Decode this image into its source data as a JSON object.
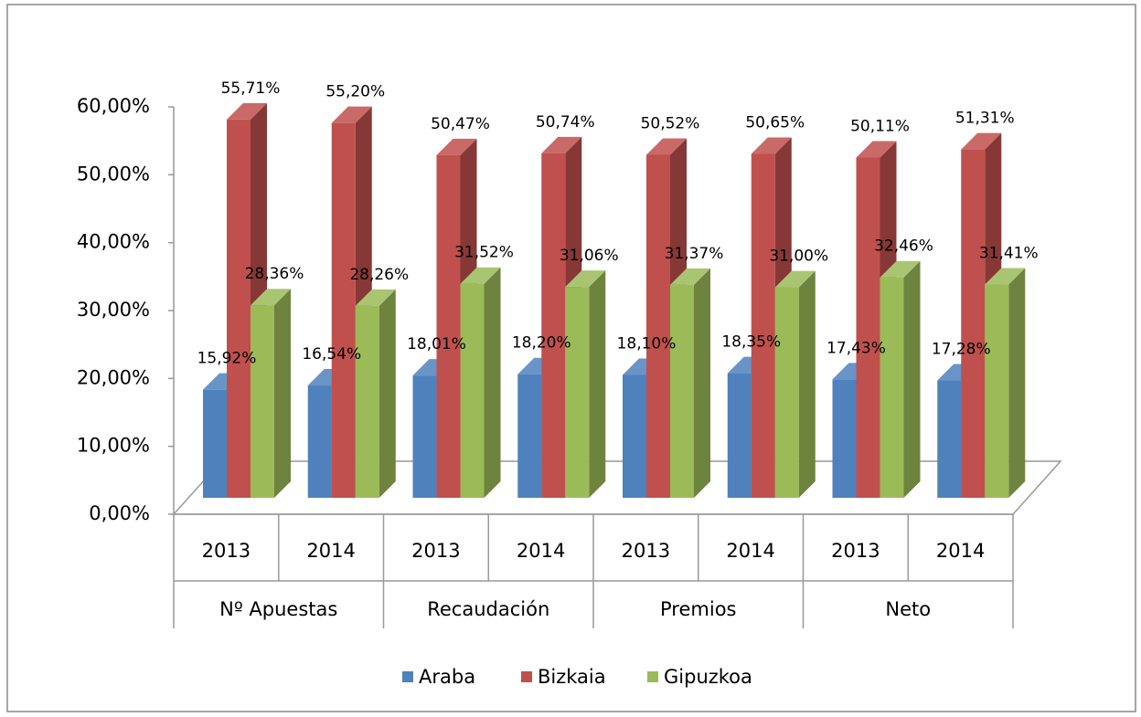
{
  "chart_data": {
    "type": "bar3d",
    "categories": [
      "2013",
      "2014",
      "2013",
      "2014",
      "2013",
      "2014",
      "2013",
      "2014"
    ],
    "category_groups": [
      "Nº Apuestas",
      "Recaudación",
      "Premios",
      "Neto"
    ],
    "series": [
      {
        "name": "Araba",
        "color": "#4f81bd",
        "values": [
          15.92,
          16.54,
          18.01,
          18.2,
          18.1,
          18.35,
          17.43,
          17.28
        ],
        "value_labels": [
          "15,92%",
          "16,54%",
          "18,01%",
          "18,20%",
          "18,10%",
          "18,35%",
          "17,43%",
          "17,28%"
        ]
      },
      {
        "name": "Bizkaia",
        "color": "#c0504d",
        "values": [
          55.71,
          55.2,
          50.47,
          50.74,
          50.52,
          50.65,
          50.11,
          51.31
        ],
        "value_labels": [
          "55,71%",
          "55,20%",
          "50,47%",
          "50,74%",
          "50,52%",
          "50,65%",
          "50,11%",
          "51,31%"
        ]
      },
      {
        "name": "Gipuzkoa",
        "color": "#9bbb59",
        "values": [
          28.36,
          28.26,
          31.52,
          31.06,
          31.37,
          31.0,
          32.46,
          31.41
        ],
        "value_labels": [
          "28,36%",
          "28,26%",
          "31,52%",
          "31,06%",
          "31,37%",
          "31,00%",
          "32,46%",
          "31,41%"
        ]
      }
    ],
    "ylim": [
      0,
      60
    ],
    "yticks": [
      {
        "value": 0,
        "label": "0,00%"
      },
      {
        "value": 10,
        "label": "10,00%"
      },
      {
        "value": 20,
        "label": "20,00%"
      },
      {
        "value": 30,
        "label": "30,00%"
      },
      {
        "value": 40,
        "label": "40,00%"
      },
      {
        "value": 50,
        "label": "50,00%"
      },
      {
        "value": 60,
        "label": "60,00%"
      }
    ],
    "legend": "bottom"
  }
}
